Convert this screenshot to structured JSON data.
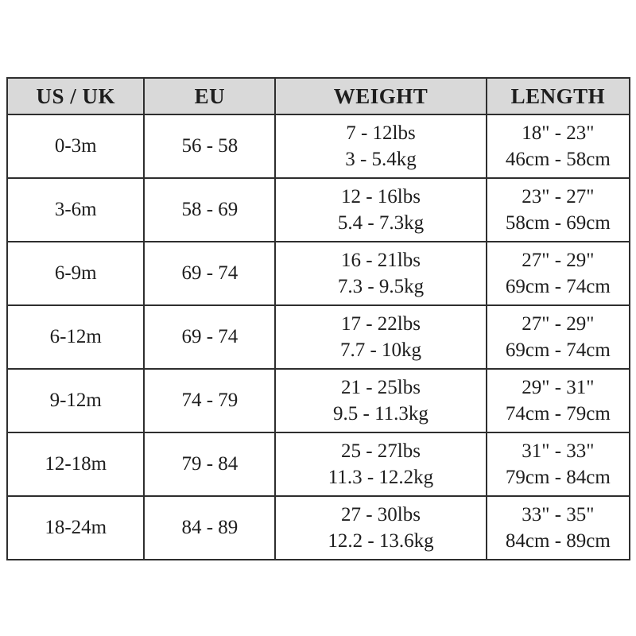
{
  "chart_data": {
    "type": "table",
    "columns": [
      "US / UK",
      "EU",
      "WEIGHT",
      "LENGTH"
    ],
    "rows": [
      {
        "us_uk": "0-3m",
        "eu": "56 - 58",
        "weight_lbs": "7 - 12lbs",
        "weight_kg": "3 - 5.4kg",
        "length_in": "18\" - 23\"",
        "length_cm": "46cm - 58cm"
      },
      {
        "us_uk": "3-6m",
        "eu": "58 - 69",
        "weight_lbs": "12 - 16lbs",
        "weight_kg": "5.4 - 7.3kg",
        "length_in": "23\" - 27\"",
        "length_cm": "58cm - 69cm"
      },
      {
        "us_uk": "6-9m",
        "eu": "69 - 74",
        "weight_lbs": "16 - 21lbs",
        "weight_kg": "7.3 - 9.5kg",
        "length_in": "27\" - 29\"",
        "length_cm": "69cm - 74cm"
      },
      {
        "us_uk": "6-12m",
        "eu": "69 - 74",
        "weight_lbs": "17 - 22lbs",
        "weight_kg": "7.7 - 10kg",
        "length_in": "27\" - 29\"",
        "length_cm": "69cm - 74cm"
      },
      {
        "us_uk": "9-12m",
        "eu": "74 - 79",
        "weight_lbs": "21 - 25lbs",
        "weight_kg": "9.5 - 11.3kg",
        "length_in": "29\" - 31\"",
        "length_cm": "74cm - 79cm"
      },
      {
        "us_uk": "12-18m",
        "eu": "79 - 84",
        "weight_lbs": "25 - 27lbs",
        "weight_kg": "11.3 - 12.2kg",
        "length_in": "31\" - 33\"",
        "length_cm": "79cm - 84cm"
      },
      {
        "us_uk": "18-24m",
        "eu": "84 - 89",
        "weight_lbs": "27 - 30lbs",
        "weight_kg": "12.2 - 13.6kg",
        "length_in": "33\" - 35\"",
        "length_cm": "84cm - 89cm"
      }
    ],
    "title": "",
    "colors": {
      "header_bg": "#d9d9d9",
      "border": "#2e2e2e",
      "text": "#1e1e1e",
      "row_bg": "#ffffff"
    }
  }
}
